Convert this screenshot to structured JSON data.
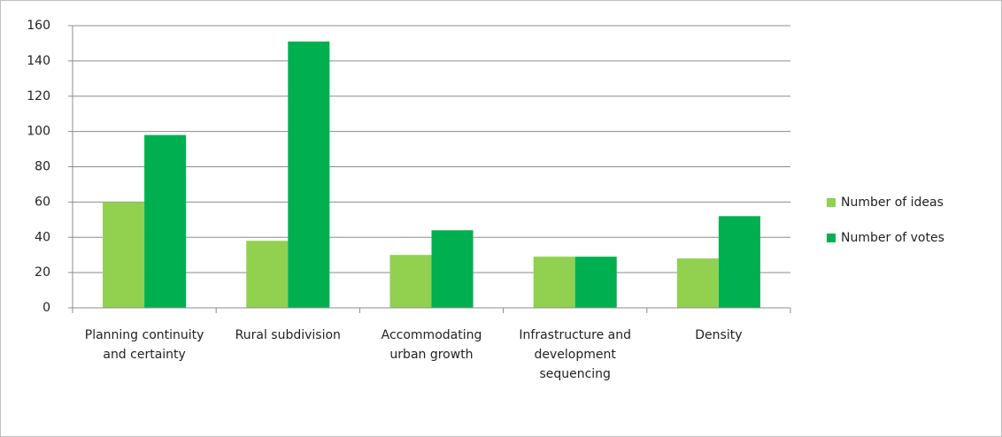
{
  "chart_data": {
    "type": "bar",
    "categories": [
      "Planning continuity and certainty",
      "Rural subdivision",
      "Accommodating urban growth",
      "Infrastructure and development sequencing",
      "Density"
    ],
    "series": [
      {
        "name": "Number of ideas",
        "color": "#92d050",
        "values": [
          60,
          38,
          30,
          29,
          28
        ]
      },
      {
        "name": "Number of votes",
        "color": "#00b050",
        "values": [
          98,
          151,
          44,
          29,
          52
        ]
      }
    ],
    "ylim": [
      0,
      160
    ],
    "yticks": [
      0,
      20,
      40,
      60,
      80,
      100,
      120,
      140,
      160
    ],
    "grid": true,
    "legend": "right"
  }
}
